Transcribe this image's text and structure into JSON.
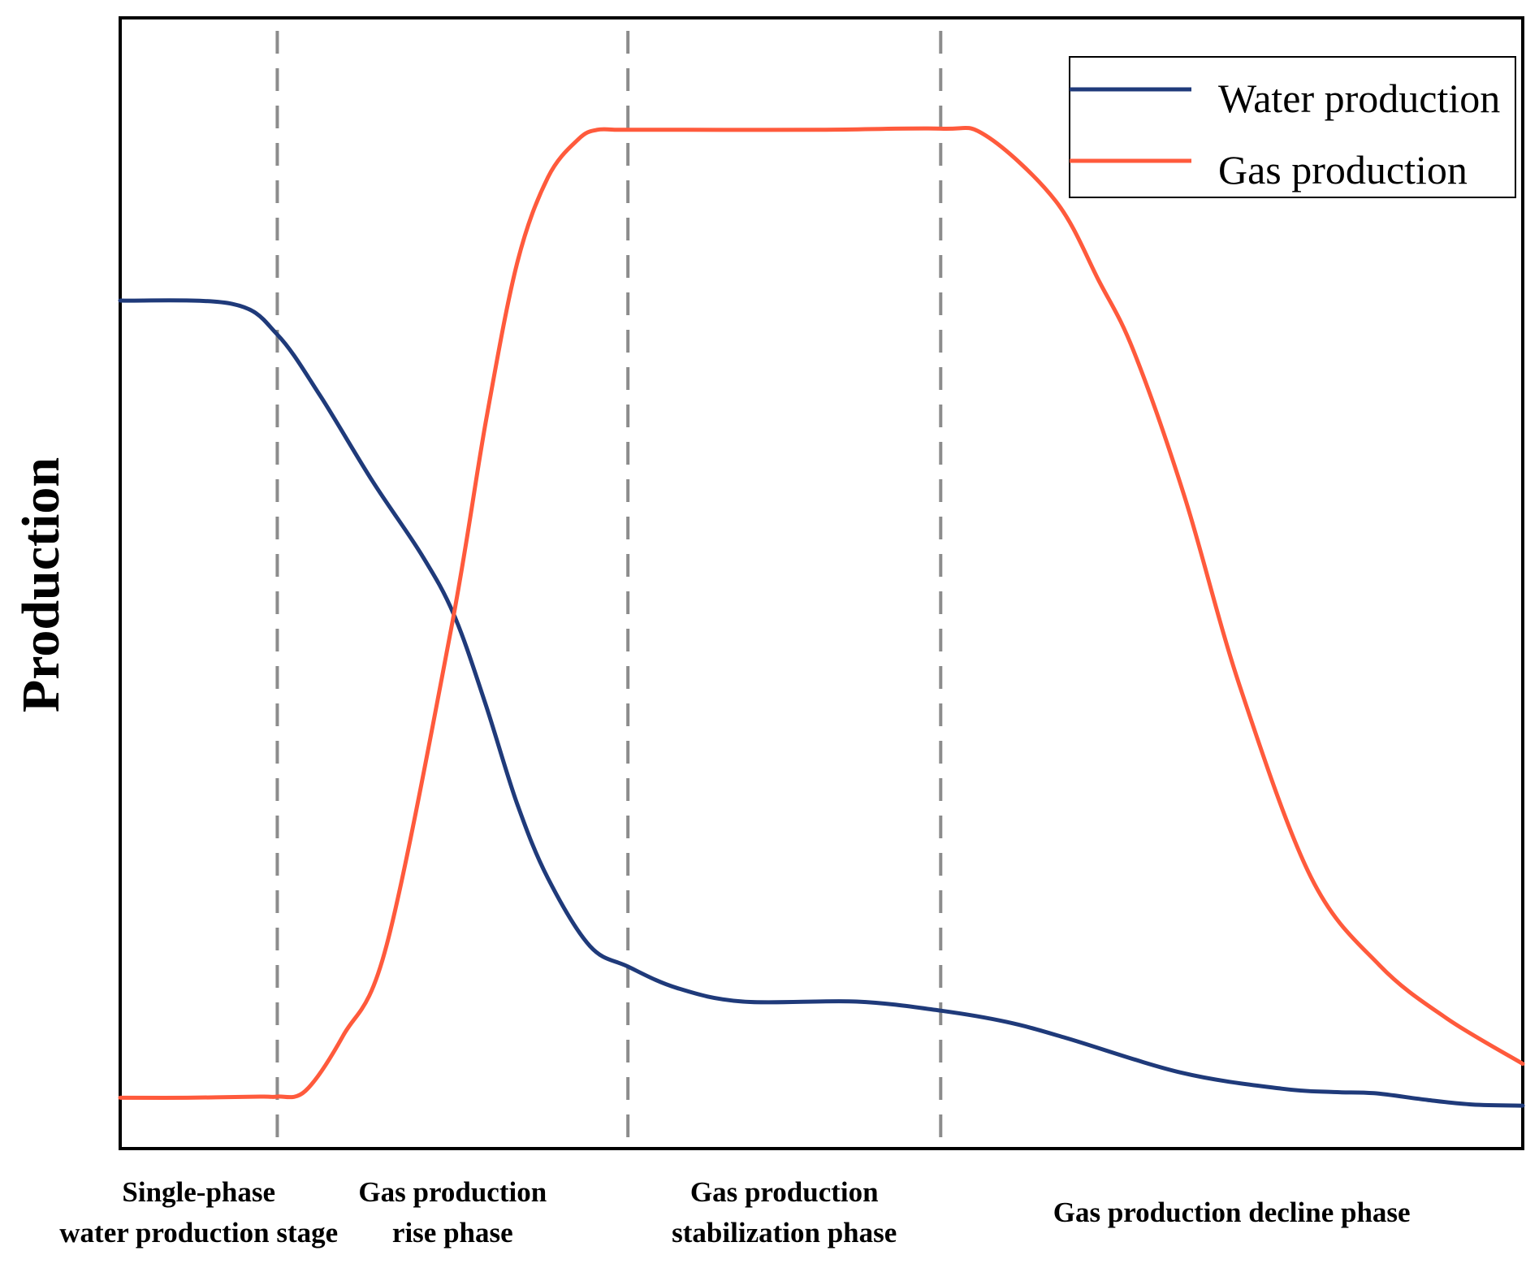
{
  "chart_data": {
    "type": "line",
    "ylabel": "Production",
    "xlabel": "",
    "x_axis_ticks": "none",
    "y_axis_ticks": "none",
    "grid": false,
    "legend_position": "top-right",
    "xlim": [
      0,
      100
    ],
    "ylim": [
      0,
      100
    ],
    "phase_boundaries": [
      11.2,
      36.2,
      58.5
    ],
    "phases": [
      {
        "lines": [
          "Single-phase",
          "water production stage"
        ]
      },
      {
        "lines": [
          "Gas production",
          "rise phase"
        ]
      },
      {
        "lines": [
          "Gas production",
          "stabilization phase"
        ]
      },
      {
        "lines": [
          "Gas production decline phase"
        ]
      }
    ],
    "series": [
      {
        "name": "Water production",
        "color": "#1f3a7a",
        "x": [
          0,
          8,
          11.2,
          14.3,
          18,
          21.5,
          23.8,
          26,
          28.3,
          30.5,
          33.5,
          36.2,
          39.7,
          44.4,
          52.5,
          58.5,
          63.2,
          67.4,
          75.7,
          82.8,
          86.5,
          89.4,
          93.2,
          96.4,
          100
        ],
        "y": [
          75,
          74.7,
          72,
          66.5,
          59,
          52.5,
          47.2,
          39.5,
          30.5,
          23.9,
          17.9,
          16.1,
          14.2,
          13,
          13,
          12.2,
          11.2,
          9.8,
          6.7,
          5.3,
          5,
          4.9,
          4.3,
          3.9,
          3.8
        ]
      },
      {
        "name": "Gas production",
        "color": "#ff5a3c",
        "x": [
          0,
          4.8,
          10,
          11.2,
          13.2,
          15.9,
          19,
          23.6,
          26.1,
          28.3,
          30.5,
          32.7,
          34,
          35.4,
          36.2,
          40.4,
          49.9,
          58.5,
          61.7,
          66.7,
          69.8,
          72.3,
          75.9,
          79.8,
          84.9,
          89.8,
          94.6,
          100
        ],
        "y": [
          4.5,
          4.5,
          4.6,
          4.6,
          5.1,
          10,
          18,
          46,
          64.5,
          78.3,
          85.9,
          89.3,
          90.1,
          90.1,
          90.1,
          90.1,
          90.1,
          90.2,
          89.6,
          83.8,
          76.7,
          70.4,
          57.6,
          41,
          24,
          16.2,
          11.5,
          7.5
        ]
      }
    ]
  }
}
